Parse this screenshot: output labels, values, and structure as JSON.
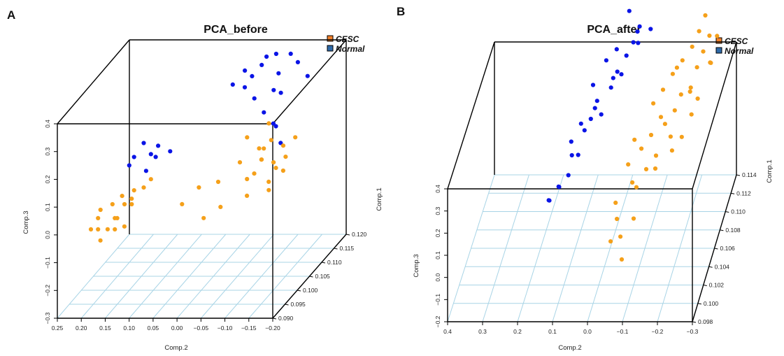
{
  "chart_data": [
    {
      "panel": "A",
      "type": "scatter",
      "title": "PCA_before",
      "legend": {
        "position": "top-right",
        "entries": [
          {
            "name": "CESC",
            "color": "#f07f2a"
          },
          {
            "name": "Normal",
            "color": "#2f6aa8"
          }
        ]
      },
      "axes": {
        "x": {
          "label": "Comp.2",
          "ticks": [
            "0.25",
            "0.20",
            "0.15",
            "0.10",
            "0.05",
            "0.00",
            "−0.05",
            "−0.10",
            "−0.15",
            "−0.20"
          ]
        },
        "y": {
          "label": "Comp.3",
          "ticks": [
            "−0.3",
            "−0.2",
            "−0.1",
            "0.0",
            "0.1",
            "0.2",
            "0.3",
            "0.4"
          ]
        },
        "z": {
          "label": "Comp.1",
          "ticks": [
            "0.090",
            "0.095",
            "0.100",
            "0.105",
            "0.110",
            "0.115",
            "0.120"
          ]
        }
      },
      "series": [
        {
          "name": "Normal",
          "color": "#0a14e6",
          "points": [
            [
              0.102,
              0.1,
              0.2
            ],
            [
              0.096,
              0.12,
              0.22
            ],
            [
              0.101,
              0.11,
              0.18
            ],
            [
              0.097,
              0.1,
              0.16
            ],
            [
              0.099,
              0.09,
              0.19
            ],
            [
              0.103,
              0.08,
              0.17
            ],
            [
              0.094,
              0.12,
              0.21
            ],
            [
              0.1,
              0.12,
              0.23
            ],
            [
              0.113,
              -0.06,
              0.38
            ],
            [
              0.115,
              -0.08,
              0.4
            ],
            [
              0.112,
              -0.03,
              0.37
            ],
            [
              0.11,
              -0.04,
              0.33
            ],
            [
              0.117,
              -0.1,
              0.38
            ],
            [
              0.111,
              -0.05,
              0.36
            ],
            [
              0.114,
              -0.09,
              0.34
            ],
            [
              0.109,
              -0.02,
              0.35
            ],
            [
              0.116,
              -0.12,
              0.36
            ],
            [
              0.108,
              -0.07,
              0.31
            ],
            [
              0.118,
              -0.13,
              0.29
            ],
            [
              0.106,
              -0.1,
              0.28
            ],
            [
              0.107,
              -0.12,
              0.22
            ],
            [
              0.105,
              -0.14,
              0.18
            ],
            [
              0.104,
              -0.13,
              0.26
            ],
            [
              0.111,
              -0.11,
              0.3
            ],
            [
              0.113,
              -0.07,
              0.41
            ],
            [
              0.11,
              -0.1,
              0.32
            ]
          ]
        },
        {
          "name": "CESC",
          "color": "#f5a01a",
          "points": [
            [
              0.093,
              0.18,
              0.03
            ],
            [
              0.095,
              0.16,
              0.06
            ],
            [
              0.092,
              0.19,
              0.0
            ],
            [
              0.094,
              0.15,
              0.02
            ],
            [
              0.091,
              0.17,
              0.01
            ],
            [
              0.096,
              0.14,
              0.05
            ],
            [
              0.093,
              0.16,
              -0.01
            ],
            [
              0.097,
              0.13,
              0.04
            ],
            [
              0.095,
              0.12,
              0.08
            ],
            [
              0.098,
              0.11,
              0.09
            ],
            [
              0.094,
              0.18,
              0.05
            ],
            [
              0.092,
              0.14,
              0.0
            ],
            [
              0.096,
              0.12,
              0.1
            ],
            [
              0.09,
              0.16,
              -0.02
            ],
            [
              0.097,
              0.15,
              0.07
            ],
            [
              0.099,
              0.1,
              0.11
            ],
            [
              0.093,
              0.14,
              0.03
            ],
            [
              0.094,
              0.13,
              -0.01
            ],
            [
              0.098,
              0.03,
              0.03
            ],
            [
              0.101,
              0.01,
              0.06
            ],
            [
              0.099,
              -0.01,
              -0.03
            ],
            [
              0.103,
              -0.02,
              0.06
            ],
            [
              0.1,
              -0.04,
              0.0
            ],
            [
              0.106,
              -0.05,
              0.1
            ],
            [
              0.108,
              -0.08,
              0.13
            ],
            [
              0.105,
              -0.07,
              0.05
            ],
            [
              0.109,
              -0.1,
              0.15
            ],
            [
              0.107,
              -0.06,
              0.18
            ],
            [
              0.104,
              -0.09,
              0.08
            ],
            [
              0.11,
              -0.12,
              0.12
            ],
            [
              0.106,
              -0.11,
              0.03
            ],
            [
              0.108,
              -0.1,
              -0.02
            ],
            [
              0.103,
              -0.08,
              0.01
            ],
            [
              0.109,
              -0.13,
              0.09
            ],
            [
              0.111,
              -0.14,
              0.14
            ],
            [
              0.107,
              -0.12,
              0.07
            ],
            [
              0.105,
              -0.1,
              0.12
            ],
            [
              0.11,
              -0.09,
              0.2
            ],
            [
              0.104,
              -0.11,
              0.17
            ],
            [
              0.108,
              -0.13,
              0.05
            ],
            [
              0.106,
              -0.12,
              0.1
            ],
            [
              0.109,
              -0.08,
              0.08
            ]
          ]
        }
      ]
    },
    {
      "panel": "B",
      "type": "scatter",
      "title": "PCA_after",
      "legend": {
        "position": "top-right",
        "entries": [
          {
            "name": "CESC",
            "color": "#f07f2a"
          },
          {
            "name": "Normal",
            "color": "#2f6aa8"
          }
        ]
      },
      "axes": {
        "x": {
          "label": "Comp.2",
          "ticks": [
            "0.4",
            "0.3",
            "0.2",
            "0.1",
            "0.0",
            "−0.1",
            "−0.2",
            "−0.3"
          ]
        },
        "y": {
          "label": "Comp.3",
          "ticks": [
            "−0.2",
            "−0.1",
            "0.0",
            "0.1",
            "0.2",
            "0.3",
            "0.4"
          ]
        },
        "z": {
          "label": "Comp.1",
          "ticks": [
            "0.098",
            "0.100",
            "0.102",
            "0.104",
            "0.106",
            "0.108",
            "0.110",
            "0.112",
            "0.114"
          ]
        }
      },
      "series": [
        {
          "name": "Normal",
          "color": "#0a14e6",
          "points": [
            [
              0.104,
              0.16,
              0.1
            ],
            [
              0.105,
              0.14,
              0.12
            ],
            [
              0.103,
              0.15,
              0.14
            ],
            [
              0.106,
              0.12,
              0.13
            ],
            [
              0.104,
              0.13,
              0.16
            ],
            [
              0.107,
              0.1,
              0.18
            ],
            [
              0.106,
              0.11,
              0.22
            ],
            [
              0.108,
              0.09,
              0.25
            ],
            [
              0.107,
              0.12,
              0.24
            ],
            [
              0.109,
              0.08,
              0.26
            ],
            [
              0.108,
              0.1,
              0.28
            ],
            [
              0.11,
              0.07,
              0.3
            ],
            [
              0.109,
              0.05,
              0.28
            ],
            [
              0.111,
              0.09,
              0.33
            ],
            [
              0.108,
              0.06,
              0.35
            ],
            [
              0.112,
              0.04,
              0.32
            ],
            [
              0.11,
              0.03,
              0.36
            ],
            [
              0.112,
              0.06,
              0.4
            ],
            [
              0.111,
              0.02,
              0.39
            ],
            [
              0.113,
              0.01,
              0.38
            ],
            [
              0.11,
              0.0,
              0.42
            ],
            [
              0.113,
              -0.01,
              0.44
            ],
            [
              0.112,
              0.03,
              0.45
            ],
            [
              0.114,
              -0.02,
              0.47
            ],
            [
              0.113,
              -0.06,
              0.5
            ],
            [
              0.111,
              -0.04,
              0.52
            ],
            [
              0.112,
              -0.03,
              0.53
            ],
            [
              0.114,
              0.01,
              0.54
            ]
          ]
        },
        {
          "name": "CESC",
          "color": "#f5a01a",
          "points": [
            [
              0.1,
              -0.05,
              0.08
            ],
            [
              0.101,
              -0.07,
              0.06
            ],
            [
              0.099,
              -0.09,
              0.04
            ],
            [
              0.102,
              -0.1,
              0.1
            ],
            [
              0.101,
              -0.06,
              0.14
            ],
            [
              0.103,
              -0.04,
              0.13
            ],
            [
              0.104,
              -0.08,
              0.18
            ],
            [
              0.103,
              -0.1,
              0.2
            ],
            [
              0.105,
              -0.06,
              0.22
            ],
            [
              0.104,
              -0.12,
              0.24
            ],
            [
              0.106,
              -0.09,
              0.25
            ],
            [
              0.105,
              -0.14,
              0.26
            ],
            [
              0.107,
              -0.11,
              0.27
            ],
            [
              0.106,
              -0.07,
              0.29
            ],
            [
              0.108,
              -0.13,
              0.31
            ],
            [
              0.107,
              -0.15,
              0.32
            ],
            [
              0.109,
              -0.1,
              0.33
            ],
            [
              0.108,
              -0.17,
              0.34
            ],
            [
              0.11,
              -0.12,
              0.35
            ],
            [
              0.109,
              -0.18,
              0.37
            ],
            [
              0.111,
              -0.14,
              0.38
            ],
            [
              0.11,
              -0.2,
              0.36
            ],
            [
              0.112,
              -0.16,
              0.4
            ],
            [
              0.111,
              -0.21,
              0.41
            ],
            [
              0.113,
              -0.18,
              0.42
            ],
            [
              0.112,
              -0.22,
              0.44
            ],
            [
              0.11,
              -0.16,
              0.45
            ],
            [
              0.113,
              -0.23,
              0.47
            ],
            [
              0.111,
              -0.19,
              0.3
            ],
            [
              0.109,
              -0.21,
              0.28
            ],
            [
              0.112,
              -0.24,
              0.39
            ],
            [
              0.108,
              -0.19,
              0.22
            ],
            [
              0.11,
              -0.22,
              0.31
            ],
            [
              0.111,
              -0.25,
              0.43
            ],
            [
              0.113,
              -0.2,
              0.49
            ],
            [
              0.112,
              -0.26,
              0.51
            ],
            [
              0.109,
              -0.15,
              0.18
            ],
            [
              0.107,
              -0.17,
              0.2
            ],
            [
              0.106,
              -0.13,
              0.16
            ],
            [
              0.114,
              -0.21,
              0.52
            ]
          ]
        }
      ]
    }
  ]
}
